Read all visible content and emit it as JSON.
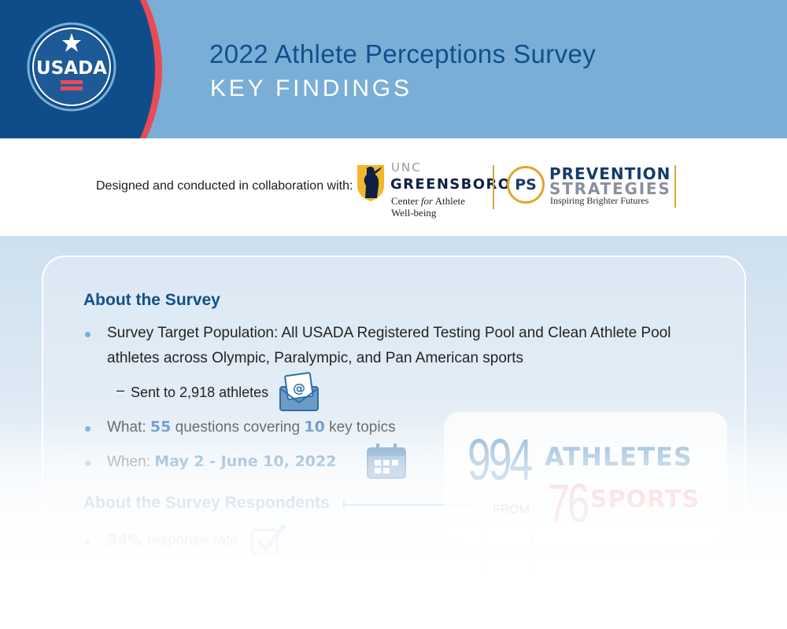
{
  "header": {
    "logo_text": "USADA",
    "title": "2022 Athlete Perceptions Survey",
    "subtitle": "KEY FINDINGS"
  },
  "collaboration": {
    "intro": "Designed and conducted in collaboration with:",
    "uncg": {
      "line1": "UNC",
      "line2": "GREENSBORO",
      "line3_a": "Center ",
      "line3_b": "for",
      "line3_c": " Athlete",
      "line4": "Well-being"
    },
    "prevention_strategies": {
      "monogram": "PS",
      "line1": "PREVENTION",
      "line2": "STRATEGIES",
      "tagline": "Inspiring Brighter Futures"
    }
  },
  "about_survey": {
    "heading": "About the Survey",
    "population_line1": "Survey Target Population: All USADA Registered Testing Pool and Clean Athlete Pool",
    "population_line2": "athletes across Olympic, Paralympic, and Pan American sports",
    "dash": "–",
    "sent_to": "Sent to 2,918 athletes",
    "what_label": "What: ",
    "what_count": "55",
    "what_mid": " questions covering ",
    "what_topics": "10",
    "what_end": " key topics",
    "when_label": "When: ",
    "when_dates": "May 2 - June 10, 2022"
  },
  "respondents": {
    "heading": "About the Survey Respondents",
    "rate_value": "34%",
    "rate_label": " response rate",
    "athletes_count": "994",
    "athletes_label": "ATHLETES",
    "from": "FROM",
    "sports_count": "76",
    "sports_label": "SPORTS"
  },
  "colors": {
    "header_bg": "#7aaed6",
    "navy": "#10508c",
    "red": "#e84b55",
    "gold": "#e3a531"
  },
  "icons": [
    "star-icon",
    "envelope-at-icon",
    "calendar-icon",
    "checkmark-icon",
    "uncg-minerva-icon"
  ]
}
